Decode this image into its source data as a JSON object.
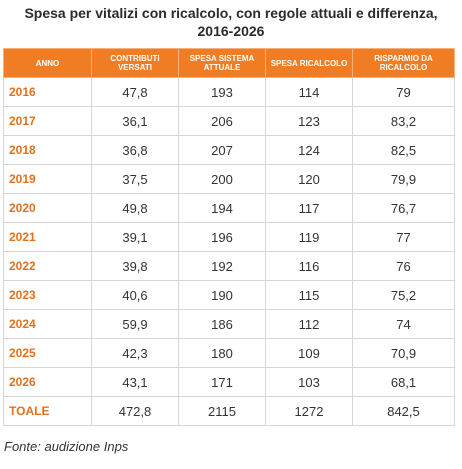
{
  "chart_data": {
    "type": "table",
    "title_lines": [
      "Spesa per vitalizi con ricalcolo, con regole attuali e differenza,",
      "2016-2026"
    ],
    "columns": [
      "ANNO",
      "CONTRIBUTI VERSATI",
      "SPESA SISTEMA ATTUALE",
      "SPESA RICALCOLO",
      "RISPARMIO DA RICALCOLO"
    ],
    "rows": [
      [
        "2016",
        "47,8",
        "193",
        "114",
        "79"
      ],
      [
        "2017",
        "36,1",
        "206",
        "123",
        "83,2"
      ],
      [
        "2018",
        "36,8",
        "207",
        "124",
        "82,5"
      ],
      [
        "2019",
        "37,5",
        "200",
        "120",
        "79,9"
      ],
      [
        "2020",
        "49,8",
        "194",
        "117",
        "76,7"
      ],
      [
        "2021",
        "39,1",
        "196",
        "119",
        "77"
      ],
      [
        "2022",
        "39,8",
        "192",
        "116",
        "76"
      ],
      [
        "2023",
        "40,6",
        "190",
        "115",
        "75,2"
      ],
      [
        "2024",
        "59,9",
        "186",
        "112",
        "74"
      ],
      [
        "2025",
        "42,3",
        "180",
        "109",
        "70,9"
      ],
      [
        "2026",
        "43,1",
        "171",
        "103",
        "68,1"
      ],
      [
        "TOALE",
        "472,8",
        "2115",
        "1272",
        "842,5"
      ]
    ],
    "header_color": "#f07d23",
    "year_color": "#e2711d"
  },
  "source": "Fonte: audizione Inps"
}
